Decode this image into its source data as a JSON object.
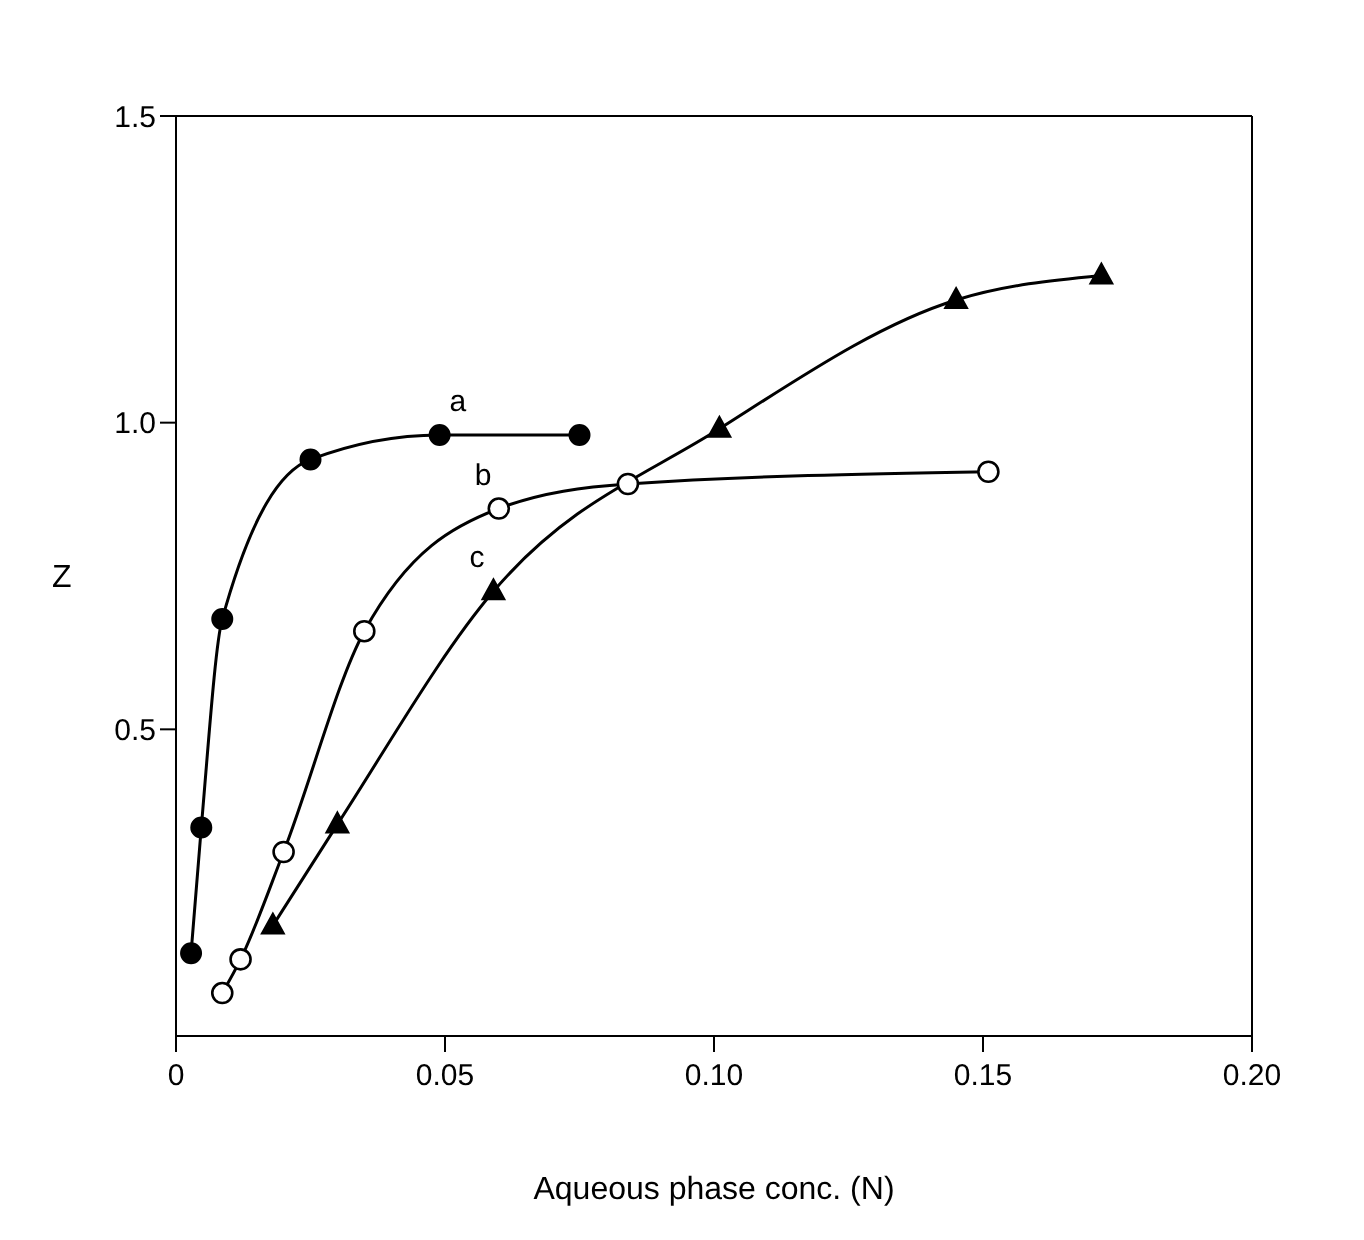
{
  "chart_data": {
    "type": "line",
    "xlabel": "Aqueous phase conc. (N)",
    "ylabel": "Z",
    "xlim": [
      0,
      0.2
    ],
    "xticks": [
      0,
      0.05,
      {
        "value": 0.1,
        "label": "0.10"
      },
      0.15,
      {
        "value": 0.2,
        "label": "0.20"
      }
    ],
    "ylim": [
      0,
      1.5
    ],
    "yticks": [
      0.5,
      {
        "value": 1,
        "label": "1.0"
      },
      1.5
    ],
    "line_style": "solid",
    "series": [
      {
        "name": "a",
        "color": "#000000",
        "marker": "circle",
        "x": [
          0.0028,
          0.0047,
          0.0086,
          0.025,
          0.049,
          0.075
        ],
        "values": [
          0.135,
          0.34,
          0.68,
          0.94,
          0.98,
          0.98
        ]
      },
      {
        "name": "b",
        "color": "#000000",
        "marker": "open-circle",
        "x": [
          0.0086,
          0.012,
          0.02,
          0.035,
          0.06,
          0.084,
          0.151
        ],
        "values": [
          0.07,
          0.125,
          0.3,
          0.66,
          0.86,
          0.9,
          0.92
        ]
      },
      {
        "name": "c",
        "color": "#000000",
        "marker": "triangle",
        "x": [
          0.018,
          0.03,
          0.059,
          0.101,
          0.145,
          0.172
        ],
        "values": [
          0.18,
          0.345,
          0.725,
          0.99,
          1.2,
          1.24
        ]
      }
    ]
  }
}
